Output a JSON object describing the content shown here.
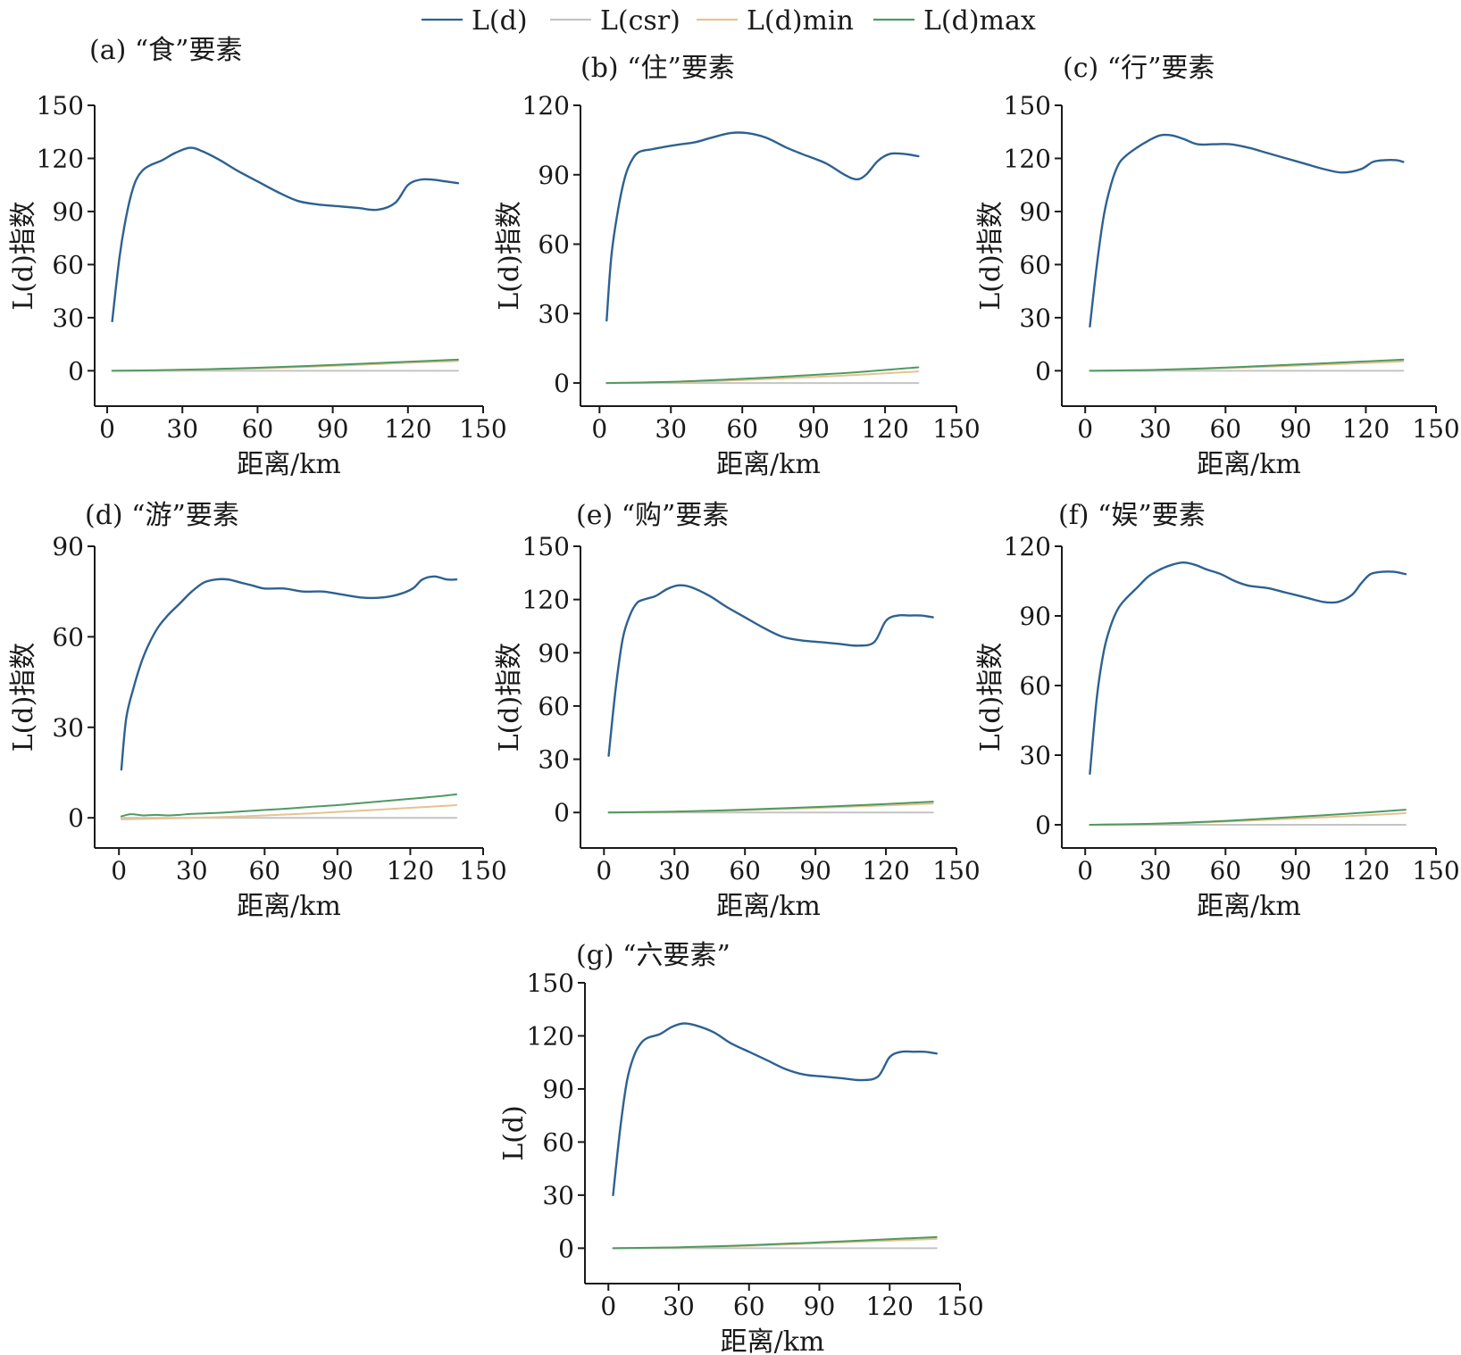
{
  "legend": {
    "items": [
      {
        "key": "ld",
        "label": "L(d)",
        "color": "#2e6191"
      },
      {
        "key": "csr",
        "label": "L(csr)",
        "color": "#c4c4c4"
      },
      {
        "key": "min",
        "label": "L(d)min",
        "color": "#e6c290"
      },
      {
        "key": "max",
        "label": "L(d)max",
        "color": "#4e9a62"
      }
    ]
  },
  "chart_data": [
    {
      "type": "line",
      "title": "(a) “食”要素",
      "xlabel": "距离/km",
      "ylabel": "L(d)指数",
      "xlim": [
        -5,
        150
      ],
      "ylim": [
        -20,
        150
      ],
      "xticks": [
        0,
        30,
        60,
        90,
        120,
        150
      ],
      "yticks": [
        0,
        30,
        60,
        90,
        120,
        150
      ],
      "series": [
        {
          "name": "L(d)",
          "x": [
            2,
            5,
            8,
            11,
            14,
            17,
            22,
            27,
            33,
            38,
            45,
            52,
            60,
            68,
            76,
            84,
            92,
            100,
            108,
            115,
            120,
            125,
            130,
            135,
            140
          ],
          "y": [
            28,
            65,
            90,
            106,
            113,
            116,
            119,
            123,
            126,
            124,
            119,
            113,
            107,
            101,
            96,
            94,
            93,
            92,
            91,
            95,
            105,
            108,
            108,
            107,
            106
          ]
        },
        {
          "name": "L(csr)",
          "x": [
            2,
            140
          ],
          "y": [
            0,
            0
          ]
        },
        {
          "name": "L(d)min",
          "x": [
            2,
            20,
            40,
            60,
            80,
            100,
            120,
            140
          ],
          "y": [
            0,
            0.2,
            0.7,
            1.3,
            2.2,
            3.3,
            4.5,
            5.5
          ]
        },
        {
          "name": "L(d)max",
          "x": [
            2,
            20,
            40,
            60,
            80,
            100,
            120,
            140
          ],
          "y": [
            0,
            0.3,
            0.9,
            1.7,
            2.7,
            3.9,
            5.1,
            6.3
          ]
        }
      ]
    },
    {
      "type": "line",
      "title": "(b) “住”要素",
      "xlabel": "距离/km",
      "ylabel": "L(d)指数",
      "xlim": [
        -8,
        150
      ],
      "ylim": [
        -10,
        120
      ],
      "xticks": [
        0,
        30,
        60,
        90,
        120,
        150
      ],
      "yticks": [
        0,
        30,
        60,
        90,
        120
      ],
      "series": [
        {
          "name": "L(d)",
          "x": [
            3,
            5,
            8,
            11,
            14,
            17,
            22,
            27,
            33,
            40,
            47,
            55,
            62,
            70,
            78,
            85,
            95,
            103,
            108,
            112,
            117,
            122,
            128,
            134
          ],
          "y": [
            27,
            55,
            76,
            90,
            97,
            100,
            101,
            102,
            103,
            104,
            106,
            108,
            108,
            106,
            102,
            99,
            95,
            90,
            88,
            90,
            96,
            99,
            99,
            98
          ]
        },
        {
          "name": "L(csr)",
          "x": [
            3,
            134
          ],
          "y": [
            0,
            0
          ]
        },
        {
          "name": "L(d)min",
          "x": [
            3,
            30,
            60,
            90,
            110,
            134
          ],
          "y": [
            0,
            0.3,
            1.3,
            2.6,
            3.6,
            5
          ]
        },
        {
          "name": "L(d)max",
          "x": [
            3,
            30,
            60,
            90,
            110,
            134
          ],
          "y": [
            0,
            0.5,
            1.8,
            3.5,
            4.8,
            6.8
          ]
        }
      ]
    },
    {
      "type": "line",
      "title": "(c) “行”要素",
      "xlabel": "距离/km",
      "ylabel": "L(d)指数",
      "xlim": [
        -10,
        150
      ],
      "ylim": [
        -20,
        150
      ],
      "xticks": [
        0,
        30,
        60,
        90,
        120,
        150
      ],
      "yticks": [
        0,
        30,
        60,
        90,
        120,
        150
      ],
      "series": [
        {
          "name": "L(d)",
          "x": [
            2,
            5,
            8,
            11,
            14,
            17,
            22,
            27,
            32,
            37,
            42,
            48,
            55,
            62,
            70,
            78,
            86,
            94,
            102,
            110,
            118,
            123,
            128,
            133,
            136
          ],
          "y": [
            25,
            60,
            88,
            105,
            116,
            121,
            126,
            130,
            133,
            133,
            131,
            128,
            128,
            128,
            126,
            123,
            120,
            117,
            114,
            112,
            114,
            118,
            119,
            119,
            118
          ]
        },
        {
          "name": "L(csr)",
          "x": [
            2,
            136
          ],
          "y": [
            0,
            0
          ]
        },
        {
          "name": "L(d)min",
          "x": [
            2,
            30,
            60,
            90,
            110,
            136
          ],
          "y": [
            0,
            0.4,
            1.5,
            2.9,
            3.9,
            5.3
          ]
        },
        {
          "name": "L(d)max",
          "x": [
            2,
            30,
            60,
            90,
            110,
            136
          ],
          "y": [
            0,
            0.5,
            1.8,
            3.5,
            4.7,
            6.3
          ]
        }
      ]
    },
    {
      "type": "line",
      "title": "(d) “游”要素",
      "xlabel": "距离/km",
      "ylabel": "L(d)指数",
      "xlim": [
        -10,
        150
      ],
      "ylim": [
        -10,
        90
      ],
      "xticks": [
        0,
        30,
        60,
        90,
        120,
        150
      ],
      "yticks": [
        0,
        30,
        60,
        90
      ],
      "series": [
        {
          "name": "L(d)",
          "x": [
            1,
            3,
            6,
            9,
            12,
            16,
            20,
            25,
            30,
            35,
            40,
            45,
            50,
            55,
            60,
            68,
            76,
            84,
            92,
            100,
            108,
            115,
            121,
            125,
            130,
            135,
            139
          ],
          "y": [
            16,
            33,
            43,
            51,
            57,
            63,
            67,
            71,
            75,
            78,
            79,
            79,
            78,
            77,
            76,
            76,
            75,
            75,
            74,
            73,
            73,
            74,
            76,
            79,
            80,
            79,
            79
          ]
        },
        {
          "name": "L(csr)",
          "x": [
            1,
            139
          ],
          "y": [
            0,
            0
          ]
        },
        {
          "name": "L(d)min",
          "x": [
            1,
            20,
            40,
            60,
            80,
            100,
            120,
            139
          ],
          "y": [
            -0.5,
            -0.2,
            0.2,
            0.8,
            1.5,
            2.4,
            3.3,
            4.2
          ]
        },
        {
          "name": "L(d)max",
          "x": [
            1,
            5,
            10,
            15,
            20,
            25,
            30,
            40,
            50,
            60,
            70,
            80,
            90,
            100,
            110,
            120,
            130,
            139
          ],
          "y": [
            0.5,
            1.2,
            0.8,
            1.0,
            0.8,
            1.0,
            1.3,
            1.6,
            2.1,
            2.6,
            3.1,
            3.7,
            4.2,
            4.9,
            5.6,
            6.3,
            7.0,
            7.8
          ]
        }
      ]
    },
    {
      "type": "line",
      "title": "(e) “购”要素",
      "xlabel": "距离/km",
      "ylabel": "L(d)指数",
      "xlim": [
        -10,
        150
      ],
      "ylim": [
        -20,
        150
      ],
      "xticks": [
        0,
        30,
        60,
        90,
        120,
        150
      ],
      "yticks": [
        0,
        30,
        60,
        90,
        120,
        150
      ],
      "series": [
        {
          "name": "L(d)",
          "x": [
            2,
            5,
            8,
            11,
            14,
            17,
            22,
            27,
            32,
            37,
            45,
            52,
            60,
            68,
            76,
            84,
            92,
            100,
            108,
            115,
            120,
            125,
            130,
            135,
            140
          ],
          "y": [
            32,
            70,
            98,
            111,
            118,
            120,
            122,
            126,
            128,
            127,
            122,
            116,
            110,
            104,
            99,
            97,
            96,
            95,
            94,
            96,
            108,
            111,
            111,
            111,
            110
          ]
        },
        {
          "name": "L(csr)",
          "x": [
            2,
            140
          ],
          "y": [
            0,
            0
          ]
        },
        {
          "name": "L(d)min",
          "x": [
            2,
            30,
            60,
            90,
            120,
            140
          ],
          "y": [
            0,
            0.4,
            1.3,
            2.6,
            4.0,
            5.0
          ]
        },
        {
          "name": "L(d)max",
          "x": [
            2,
            30,
            60,
            90,
            120,
            140
          ],
          "y": [
            0,
            0.5,
            1.6,
            3.1,
            4.8,
            6.1
          ]
        }
      ]
    },
    {
      "type": "line",
      "title": "(f) “娱”要素",
      "xlabel": "距离/km",
      "ylabel": "L(d)指数",
      "xlim": [
        -10,
        150
      ],
      "ylim": [
        -10,
        120
      ],
      "xticks": [
        0,
        30,
        60,
        90,
        120,
        150
      ],
      "yticks": [
        0,
        30,
        60,
        90,
        120
      ],
      "series": [
        {
          "name": "L(d)",
          "x": [
            2,
            5,
            8,
            11,
            14,
            17,
            22,
            27,
            32,
            37,
            42,
            47,
            52,
            58,
            64,
            70,
            78,
            86,
            94,
            102,
            108,
            114,
            118,
            122,
            127,
            132,
            137
          ],
          "y": [
            22,
            55,
            75,
            86,
            93,
            97,
            102,
            107,
            110,
            112,
            113,
            112,
            110,
            108,
            105,
            103,
            102,
            100,
            98,
            96,
            96,
            99,
            104,
            108,
            109,
            109,
            108
          ]
        },
        {
          "name": "L(csr)",
          "x": [
            2,
            137
          ],
          "y": [
            0,
            0
          ]
        },
        {
          "name": "L(d)min",
          "x": [
            2,
            30,
            60,
            90,
            110,
            137
          ],
          "y": [
            0,
            0.4,
            1.4,
            2.7,
            3.6,
            5.0
          ]
        },
        {
          "name": "L(d)max",
          "x": [
            2,
            30,
            60,
            90,
            110,
            137
          ],
          "y": [
            0,
            0.5,
            1.7,
            3.4,
            4.6,
            6.5
          ]
        }
      ]
    },
    {
      "type": "line",
      "title": "(g) “六要素”",
      "xlabel": "距离/km",
      "ylabel": "L(d)",
      "xlim": [
        -10,
        150
      ],
      "ylim": [
        -20,
        150
      ],
      "xticks": [
        0,
        30,
        60,
        90,
        120,
        150
      ],
      "yticks": [
        0,
        30,
        60,
        90,
        120,
        150
      ],
      "series": [
        {
          "name": "L(d)",
          "x": [
            2,
            5,
            8,
            11,
            14,
            17,
            22,
            27,
            32,
            37,
            45,
            52,
            60,
            68,
            76,
            84,
            92,
            100,
            108,
            115,
            120,
            125,
            130,
            135,
            140
          ],
          "y": [
            30,
            67,
            95,
            109,
            116,
            119,
            121,
            125,
            127,
            126,
            122,
            116,
            111,
            106,
            101,
            98,
            97,
            96,
            95,
            97,
            108,
            111,
            111,
            111,
            110
          ]
        },
        {
          "name": "L(csr)",
          "x": [
            2,
            140
          ],
          "y": [
            0,
            0
          ]
        },
        {
          "name": "L(d)min",
          "x": [
            2,
            30,
            60,
            90,
            120,
            140
          ],
          "y": [
            0,
            0.4,
            1.4,
            2.8,
            4.3,
            5.3
          ]
        },
        {
          "name": "L(d)max",
          "x": [
            2,
            30,
            60,
            90,
            120,
            140
          ],
          "y": [
            0,
            0.5,
            1.7,
            3.3,
            5.1,
            6.3
          ]
        }
      ]
    }
  ]
}
